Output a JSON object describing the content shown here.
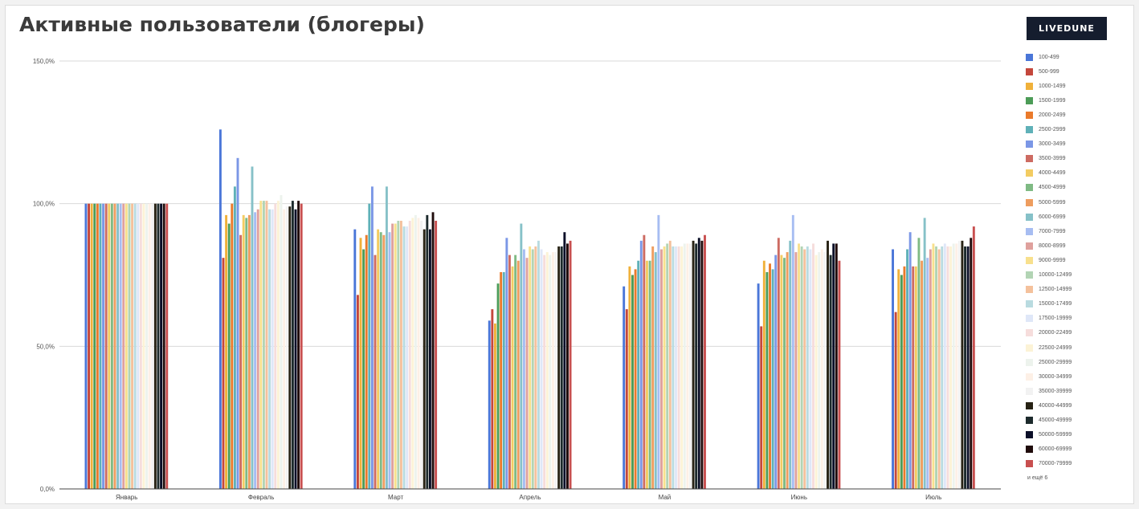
{
  "header": {
    "title": "Активные пользователи (блогеры)",
    "brand": "LIVEDUNE"
  },
  "legend": {
    "more_label": "и ещё 6"
  },
  "colors": {
    "axis": "#444444",
    "grid": "#d9d9d9",
    "series": [
      "#4a76d8",
      "#c4473c",
      "#f0b13a",
      "#4c9c57",
      "#ea7a2b",
      "#5fb1b8",
      "#7b97e6",
      "#cd6b62",
      "#f3cc62",
      "#7fba84",
      "#ee9d5f",
      "#86c1c8",
      "#a7bdf2",
      "#dfa19d",
      "#f8e08d",
      "#b2d4b4",
      "#f4c19c",
      "#b9dbe0",
      "#dfe7f8",
      "#f6dddc",
      "#fcf3d6",
      "#edf3ed",
      "#fdf0e6",
      "#f2f2f2",
      "#272214",
      "#1c2a2c",
      "#0b0f28",
      "#1f0b0b",
      "#c84f4f"
    ]
  },
  "chart_data": {
    "type": "bar",
    "title": "Активные пользователи (блогеры)",
    "xlabel": "",
    "ylabel": "",
    "ylim": [
      0,
      150
    ],
    "yticks": [
      "0,0%",
      "50,0%",
      "100,0%",
      "150,0%"
    ],
    "ytick_values": [
      0,
      50,
      100,
      150
    ],
    "grid": true,
    "legend_position": "right",
    "categories": [
      "Январь",
      "Февраль",
      "Март",
      "Апрель",
      "Май",
      "Июнь",
      "Июль"
    ],
    "series": [
      {
        "name": "100-499",
        "values": [
          100,
          126,
          91,
          59,
          71,
          72,
          84
        ]
      },
      {
        "name": "500-999",
        "values": [
          100,
          81,
          68,
          63,
          63,
          57,
          62
        ]
      },
      {
        "name": "1000-1499",
        "values": [
          100,
          96,
          88,
          58,
          78,
          80,
          77
        ]
      },
      {
        "name": "1500-1999",
        "values": [
          100,
          93,
          84,
          72,
          75,
          76,
          75
        ]
      },
      {
        "name": "2000-2499",
        "values": [
          100,
          100,
          89,
          76,
          77,
          79,
          78
        ]
      },
      {
        "name": "2500-2999",
        "values": [
          100,
          106,
          100,
          76,
          80,
          77,
          84
        ]
      },
      {
        "name": "3000-3499",
        "values": [
          100,
          116,
          106,
          88,
          87,
          82,
          90
        ]
      },
      {
        "name": "3500-3999",
        "values": [
          100,
          89,
          82,
          82,
          89,
          88,
          78
        ]
      },
      {
        "name": "4000-4499",
        "values": [
          100,
          96,
          91,
          78,
          80,
          82,
          78
        ]
      },
      {
        "name": "4500-4999",
        "values": [
          100,
          95,
          90,
          82,
          80,
          81,
          88
        ]
      },
      {
        "name": "5000-5999",
        "values": [
          100,
          96,
          89,
          80,
          85,
          83,
          80
        ]
      },
      {
        "name": "6000-6999",
        "values": [
          100,
          113,
          106,
          93,
          83,
          87,
          95
        ]
      },
      {
        "name": "7000-7999",
        "values": [
          100,
          97,
          90,
          84,
          96,
          96,
          81
        ]
      },
      {
        "name": "8000-8999",
        "values": [
          100,
          98,
          93,
          81,
          84,
          83,
          84
        ]
      },
      {
        "name": "9000-9999",
        "values": [
          100,
          101,
          93,
          85,
          85,
          86,
          86
        ]
      },
      {
        "name": "10000-12499",
        "values": [
          100,
          101,
          94,
          84,
          86,
          85,
          85
        ]
      },
      {
        "name": "12500-14999",
        "values": [
          100,
          101,
          94,
          85,
          87,
          84,
          84
        ]
      },
      {
        "name": "15000-17499",
        "values": [
          100,
          98,
          92,
          87,
          85,
          85,
          85
        ]
      },
      {
        "name": "17500-19999",
        "values": [
          100,
          98,
          92,
          84,
          85,
          84,
          86
        ]
      },
      {
        "name": "20000-22499",
        "values": [
          100,
          100,
          94,
          82,
          85,
          86,
          85
        ]
      },
      {
        "name": "22500-24999",
        "values": [
          100,
          101,
          95,
          83,
          85,
          82,
          85
        ]
      },
      {
        "name": "25000-29999",
        "values": [
          100,
          103,
          96,
          82,
          86,
          83,
          86
        ]
      },
      {
        "name": "30000-34999",
        "values": [
          100,
          98,
          95,
          83,
          86,
          84,
          86
        ]
      },
      {
        "name": "35000-39999",
        "values": [
          100,
          99,
          94,
          83,
          86,
          83,
          87
        ]
      },
      {
        "name": "40000-44999",
        "values": [
          100,
          99,
          91,
          85,
          87,
          87,
          87
        ]
      },
      {
        "name": "45000-49999",
        "values": [
          100,
          101,
          96,
          85,
          86,
          82,
          85
        ]
      },
      {
        "name": "50000-59999",
        "values": [
          100,
          98,
          91,
          90,
          88,
          86,
          85
        ]
      },
      {
        "name": "60000-69999",
        "values": [
          100,
          101,
          97,
          86,
          87,
          86,
          88
        ]
      },
      {
        "name": "70000-79999",
        "values": [
          100,
          100,
          94,
          87,
          89,
          80,
          92
        ]
      }
    ]
  }
}
